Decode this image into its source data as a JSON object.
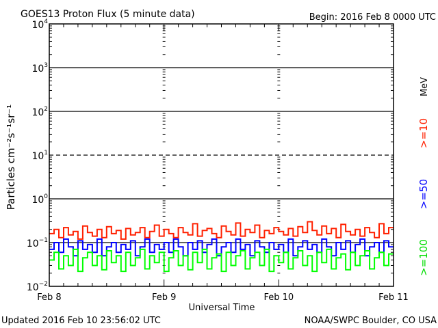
{
  "chart_data": {
    "type": "line",
    "title": "GOES13 Proton Flux (5 minute data)",
    "begin_label": "Begin: 2016 Feb 8 0000 UTC",
    "xlabel": "Universal Time",
    "ylabel": "Particles cm⁻²s⁻¹sr⁻¹",
    "y_scale": "log",
    "ylim": [
      0.01,
      10000
    ],
    "y_ticks": [
      {
        "base": "10",
        "exp": "-2"
      },
      {
        "base": "10",
        "exp": "-1"
      },
      {
        "base": "10",
        "exp": "0"
      },
      {
        "base": "10",
        "exp": "1"
      },
      {
        "base": "10",
        "exp": "2"
      },
      {
        "base": "10",
        "exp": "3"
      },
      {
        "base": "10",
        "exp": "4"
      }
    ],
    "x_range_hours": [
      0,
      72
    ],
    "x_ticks": [
      {
        "label": "Feb 8",
        "hour": 0
      },
      {
        "label": "Feb 9",
        "hour": 24
      },
      {
        "label": "Feb 10",
        "hour": 48
      },
      {
        "label": "Feb 11",
        "hour": 72
      }
    ],
    "grid": {
      "solid": [
        1000,
        100,
        1,
        0.1
      ],
      "dashed": [
        10
      ]
    },
    "unit_label": "MeV",
    "series": [
      {
        "name": ">=10",
        "color": "#ff2000",
        "values": [
          0.16,
          0.2,
          0.13,
          0.22,
          0.15,
          0.18,
          0.12,
          0.24,
          0.17,
          0.14,
          0.2,
          0.13,
          0.23,
          0.16,
          0.19,
          0.12,
          0.21,
          0.15,
          0.17,
          0.22,
          0.13,
          0.18,
          0.25,
          0.14,
          0.2,
          0.16,
          0.13,
          0.22,
          0.17,
          0.15,
          0.27,
          0.14,
          0.19,
          0.21,
          0.16,
          0.13,
          0.24,
          0.18,
          0.15,
          0.28,
          0.14,
          0.2,
          0.17,
          0.25,
          0.13,
          0.19,
          0.16,
          0.22,
          0.18,
          0.15,
          0.21,
          0.14,
          0.23,
          0.17,
          0.3,
          0.19,
          0.15,
          0.24,
          0.16,
          0.21,
          0.13,
          0.26,
          0.18,
          0.15,
          0.2,
          0.14,
          0.22,
          0.17,
          0.13,
          0.27,
          0.16,
          0.22
        ]
      },
      {
        "name": ">=50",
        "color": "#0000ff",
        "values": [
          0.07,
          0.1,
          0.06,
          0.12,
          0.08,
          0.05,
          0.11,
          0.07,
          0.09,
          0.06,
          0.12,
          0.05,
          0.08,
          0.1,
          0.06,
          0.09,
          0.07,
          0.11,
          0.05,
          0.08,
          0.12,
          0.06,
          0.09,
          0.07,
          0.1,
          0.06,
          0.12,
          0.08,
          0.05,
          0.1,
          0.07,
          0.11,
          0.06,
          0.09,
          0.12,
          0.05,
          0.08,
          0.1,
          0.06,
          0.12,
          0.07,
          0.09,
          0.05,
          0.11,
          0.08,
          0.06,
          0.1,
          0.07,
          0.09,
          0.06,
          0.12,
          0.05,
          0.08,
          0.11,
          0.07,
          0.09,
          0.06,
          0.12,
          0.08,
          0.05,
          0.1,
          0.07,
          0.11,
          0.06,
          0.09,
          0.12,
          0.05,
          0.08,
          0.1,
          0.06,
          0.11,
          0.08
        ]
      },
      {
        "name": ">=100",
        "color": "#00ff00",
        "values": [
          0.04,
          0.06,
          0.025,
          0.05,
          0.03,
          0.07,
          0.022,
          0.045,
          0.06,
          0.03,
          0.05,
          0.024,
          0.065,
          0.035,
          0.05,
          0.022,
          0.06,
          0.03,
          0.045,
          0.07,
          0.025,
          0.05,
          0.035,
          0.06,
          0.022,
          0.045,
          0.065,
          0.03,
          0.05,
          0.024,
          0.06,
          0.035,
          0.07,
          0.025,
          0.045,
          0.055,
          0.022,
          0.06,
          0.03,
          0.05,
          0.065,
          0.025,
          0.045,
          0.06,
          0.03,
          0.07,
          0.022,
          0.05,
          0.035,
          0.06,
          0.025,
          0.045,
          0.065,
          0.03,
          0.05,
          0.022,
          0.06,
          0.035,
          0.07,
          0.025,
          0.045,
          0.055,
          0.024,
          0.06,
          0.03,
          0.05,
          0.065,
          0.025,
          0.045,
          0.06,
          0.03,
          0.055
        ]
      }
    ]
  },
  "footer": {
    "updated": "Updated 2016 Feb 10 23:56:02 UTC",
    "credit": "NOAA/SWPC Boulder, CO USA"
  }
}
